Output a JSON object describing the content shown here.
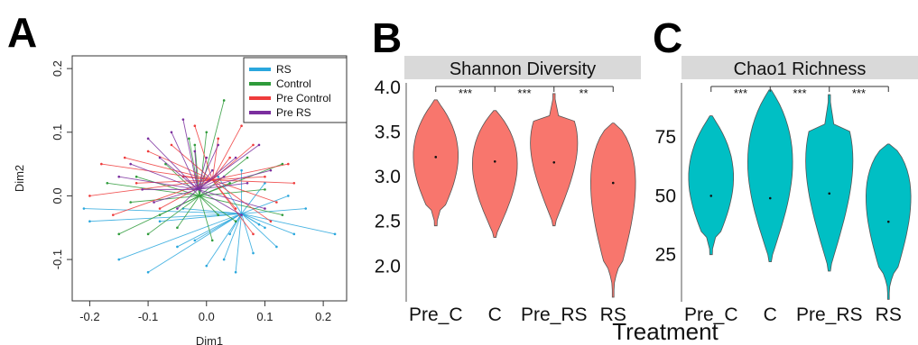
{
  "panels": {
    "A": "A",
    "B": "B",
    "C": "C"
  },
  "colors": {
    "RS": "#2aa7dd",
    "Control": "#2e9b3a",
    "Pre Control": "#ef3b3b",
    "Pre RS": "#7b2e9e",
    "violin": "#f8766d",
    "violin_c": "#00bfc4",
    "strip": "#d9d9d9"
  },
  "chart_data": [
    {
      "type": "scatter",
      "panel": "A",
      "xlabel": "Dim1",
      "ylabel": "Dim2",
      "xlim": [
        -0.23,
        0.24
      ],
      "ylim": [
        -0.165,
        0.22
      ],
      "xticks": [
        "-0.2",
        "-0.1",
        "0.0",
        "0.1",
        "0.2"
      ],
      "xtick_values": [
        -0.2,
        -0.1,
        0.0,
        0.1,
        0.2
      ],
      "yticks": [
        "-0.1",
        "0.0",
        "0.1",
        "0.2"
      ],
      "ytick_values": [
        -0.1,
        0.0,
        0.1,
        0.2
      ],
      "grid": false,
      "legend_position": "top-right",
      "series": [
        {
          "name": "RS",
          "centroid": [
            0.06,
            -0.028
          ],
          "points": [
            [
              -0.21,
              -0.02
            ],
            [
              -0.2,
              -0.04
            ],
            [
              -0.15,
              -0.1
            ],
            [
              -0.1,
              -0.12
            ],
            [
              -0.05,
              -0.08
            ],
            [
              -0.02,
              -0.07
            ],
            [
              0.0,
              -0.11
            ],
            [
              0.03,
              -0.1
            ],
            [
              0.05,
              -0.12
            ],
            [
              0.08,
              -0.09
            ],
            [
              0.12,
              -0.08
            ],
            [
              0.15,
              -0.06
            ],
            [
              0.22,
              -0.06
            ],
            [
              0.17,
              -0.02
            ],
            [
              0.14,
              0.0
            ],
            [
              0.1,
              0.02
            ],
            [
              0.06,
              0.04
            ],
            [
              0.02,
              0.03
            ],
            [
              -0.04,
              -0.02
            ],
            [
              -0.08,
              -0.04
            ],
            [
              0.09,
              -0.045
            ],
            [
              0.04,
              -0.06
            ],
            [
              0.1,
              -0.05
            ]
          ]
        },
        {
          "name": "Control",
          "centroid": [
            -0.012,
            0.0
          ],
          "points": [
            [
              -0.17,
              0.02
            ],
            [
              -0.15,
              -0.06
            ],
            [
              -0.13,
              -0.01
            ],
            [
              -0.12,
              0.03
            ],
            [
              -0.1,
              -0.06
            ],
            [
              -0.08,
              -0.03
            ],
            [
              -0.07,
              0.05
            ],
            [
              -0.05,
              -0.05
            ],
            [
              -0.03,
              0.09
            ],
            [
              -0.02,
              0.08
            ],
            [
              0.0,
              0.1
            ],
            [
              0.01,
              -0.07
            ],
            [
              0.03,
              0.15
            ],
            [
              0.04,
              0.02
            ],
            [
              0.05,
              -0.04
            ],
            [
              0.07,
              0.06
            ],
            [
              0.1,
              0.01
            ],
            [
              0.13,
              0.05
            ],
            [
              0.13,
              -0.03
            ],
            [
              0.02,
              -0.03
            ]
          ]
        },
        {
          "name": "Pre Control",
          "centroid": [
            0.01,
            0.025
          ],
          "points": [
            [
              -0.2,
              0.0
            ],
            [
              -0.18,
              0.05
            ],
            [
              -0.16,
              -0.03
            ],
            [
              -0.14,
              0.06
            ],
            [
              -0.12,
              0.02
            ],
            [
              -0.1,
              0.07
            ],
            [
              -0.08,
              -0.02
            ],
            [
              -0.06,
              0.08
            ],
            [
              -0.04,
              0.03
            ],
            [
              -0.02,
              0.11
            ],
            [
              0.02,
              0.09
            ],
            [
              0.04,
              0.06
            ],
            [
              0.06,
              0.11
            ],
            [
              0.08,
              0.08
            ],
            [
              0.1,
              0.03
            ],
            [
              0.12,
              -0.01
            ],
            [
              0.15,
              0.02
            ],
            [
              0.14,
              0.05
            ],
            [
              0.11,
              -0.04
            ],
            [
              0.08,
              -0.06
            ],
            [
              0.05,
              -0.02
            ]
          ]
        },
        {
          "name": "Pre RS",
          "centroid": [
            -0.015,
            0.01
          ],
          "points": [
            [
              -0.15,
              0.03
            ],
            [
              -0.13,
              0.05
            ],
            [
              -0.11,
              0.01
            ],
            [
              -0.1,
              0.09
            ],
            [
              -0.08,
              0.06
            ],
            [
              -0.06,
              0.1
            ],
            [
              -0.04,
              0.12
            ],
            [
              -0.02,
              0.07
            ],
            [
              0.0,
              0.06
            ],
            [
              0.02,
              0.08
            ],
            [
              0.03,
              0.03
            ],
            [
              0.05,
              0.06
            ],
            [
              0.07,
              0.02
            ],
            [
              0.09,
              0.08
            ],
            [
              0.11,
              0.04
            ],
            [
              0.1,
              -0.02
            ],
            [
              0.06,
              -0.03
            ],
            [
              -0.05,
              -0.02
            ],
            [
              -0.09,
              -0.01
            ],
            [
              0.01,
              0.04
            ]
          ]
        }
      ]
    },
    {
      "type": "violin",
      "panel": "B",
      "title": "Shannon Diversity",
      "categories": [
        "Pre_C",
        "C",
        "Pre_RS",
        "RS"
      ],
      "ylim": [
        1.6,
        4.05
      ],
      "yticks": [
        "2.0",
        "2.5",
        "3.0",
        "3.5",
        "4.0"
      ],
      "ytick_values": [
        2.0,
        2.5,
        3.0,
        3.5,
        4.0
      ],
      "medians": [
        3.22,
        3.17,
        3.16,
        2.93
      ],
      "ranges": [
        [
          2.45,
          3.86
        ],
        [
          2.32,
          3.74
        ],
        [
          2.45,
          3.93
        ],
        [
          1.65,
          3.6
        ]
      ],
      "significance": [
        {
          "from": 0,
          "to": 1,
          "label": "***"
        },
        {
          "from": 1,
          "to": 2,
          "label": "***"
        },
        {
          "from": 2,
          "to": 3,
          "label": "**"
        }
      ]
    },
    {
      "type": "violin",
      "panel": "C",
      "title": "Chao1 Richness",
      "xlabel": "Treatment",
      "categories": [
        "Pre_C",
        "C",
        "Pre_RS",
        "RS"
      ],
      "ylim": [
        5,
        98
      ],
      "yticks": [
        "25",
        "50",
        "75"
      ],
      "ytick_values": [
        25,
        50,
        75
      ],
      "medians": [
        50,
        49,
        51,
        39
      ],
      "ranges": [
        [
          25,
          84
        ],
        [
          22,
          95
        ],
        [
          18,
          93
        ],
        [
          6,
          72
        ]
      ],
      "significance": [
        {
          "from": 0,
          "to": 1,
          "label": "***"
        },
        {
          "from": 1,
          "to": 2,
          "label": "***"
        },
        {
          "from": 2,
          "to": 3,
          "label": "***"
        }
      ]
    }
  ]
}
